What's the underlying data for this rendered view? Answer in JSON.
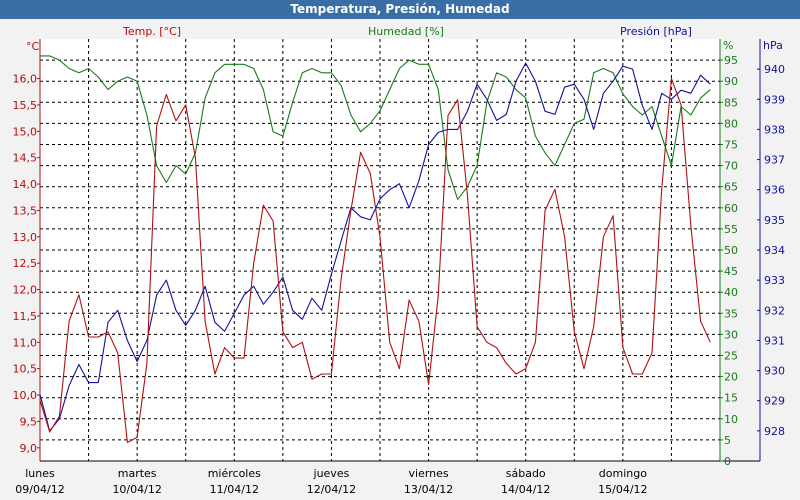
{
  "window_title": "Temperatura, Presión, Humedad",
  "colors": {
    "temperature": "#b01010",
    "humidity": "#1a7a1a",
    "pressure": "#12129a",
    "grid": "#000000",
    "title_bar": "#3a6fa6"
  },
  "chart_data": {
    "type": "line",
    "title": "Temperatura, Presión, Humedad",
    "grid": true,
    "x_dates": [
      "09/04/12",
      "10/04/12",
      "11/04/12",
      "12/04/12",
      "13/04/12",
      "14/04/12",
      "15/04/12"
    ],
    "x_days": [
      "lunes",
      "martes",
      "miércoles",
      "jueves",
      "viernes",
      "sábado",
      "domingo"
    ],
    "axes": {
      "temperature": {
        "label": "Temp. [°C]",
        "unit": "°C",
        "range": [
          8.75,
          16.75
        ],
        "ticks": [
          "9,0",
          "9,5",
          "10,0",
          "10,5",
          "11,0",
          "11,5",
          "12,0",
          "12,5",
          "13,0",
          "13,5",
          "14,0",
          "14,5",
          "15,0",
          "15,5",
          "16,0"
        ],
        "tick_values": [
          9.0,
          9.5,
          10.0,
          10.5,
          11.0,
          11.5,
          12.0,
          12.5,
          13.0,
          13.5,
          14.0,
          14.5,
          15.0,
          15.5,
          16.0
        ]
      },
      "humidity": {
        "label": "Humedad [%]",
        "unit": "%",
        "range": [
          0,
          100
        ],
        "ticks": [
          "0",
          "5",
          "10",
          "15",
          "20",
          "25",
          "30",
          "35",
          "40",
          "45",
          "50",
          "55",
          "60",
          "65",
          "70",
          "75",
          "80",
          "85",
          "90",
          "95"
        ],
        "tick_values": [
          0,
          5,
          10,
          15,
          20,
          25,
          30,
          35,
          40,
          45,
          50,
          55,
          60,
          65,
          70,
          75,
          80,
          85,
          90,
          95
        ]
      },
      "pressure": {
        "label": "Presión [hPa]",
        "unit": "hPa",
        "range": [
          927,
          941
        ],
        "ticks": [
          "928",
          "929",
          "930",
          "931",
          "932",
          "933",
          "934",
          "935",
          "936",
          "937",
          "938",
          "939",
          "940"
        ],
        "tick_values": [
          928,
          929,
          930,
          931,
          932,
          933,
          934,
          935,
          936,
          937,
          938,
          939,
          940
        ]
      }
    },
    "series": [
      {
        "name": "Temp. [°C]",
        "axis": "temperature",
        "x": [
          0,
          0.1,
          0.2,
          0.3,
          0.4,
          0.5,
          0.6,
          0.7,
          0.8,
          0.9,
          1.0,
          1.1,
          1.2,
          1.3,
          1.4,
          1.5,
          1.6,
          1.7,
          1.8,
          1.9,
          2.0,
          2.1,
          2.2,
          2.3,
          2.4,
          2.5,
          2.6,
          2.7,
          2.8,
          2.9,
          3.0,
          3.1,
          3.2,
          3.3,
          3.4,
          3.5,
          3.6,
          3.7,
          3.8,
          3.9,
          4.0,
          4.1,
          4.2,
          4.3,
          4.4,
          4.5,
          4.6,
          4.7,
          4.8,
          4.9,
          5.0,
          5.1,
          5.2,
          5.3,
          5.4,
          5.5,
          5.6,
          5.7,
          5.8,
          5.9,
          6.0,
          6.1,
          6.2,
          6.3,
          6.4,
          6.5,
          6.6,
          6.7,
          6.8,
          6.9
        ],
        "values": [
          9.9,
          9.3,
          9.6,
          11.4,
          11.9,
          11.1,
          11.1,
          11.2,
          10.8,
          9.1,
          9.2,
          10.6,
          15.1,
          15.7,
          15.2,
          15.5,
          14.5,
          11.4,
          10.4,
          10.9,
          10.7,
          10.7,
          12.5,
          13.6,
          13.3,
          11.2,
          10.9,
          11.0,
          10.3,
          10.4,
          10.4,
          12.2,
          13.5,
          14.6,
          14.2,
          13.0,
          11.0,
          10.5,
          11.8,
          11.4,
          10.2,
          11.9,
          15.3,
          15.6,
          13.8,
          11.3,
          11.0,
          10.9,
          10.6,
          10.4,
          10.5,
          11.0,
          13.5,
          13.9,
          13.0,
          11.2,
          10.5,
          11.3,
          13.0,
          13.4,
          10.9,
          10.4,
          10.4,
          10.8,
          13.9,
          16.0,
          15.5,
          13.2,
          11.4,
          11.0
        ]
      },
      {
        "name": "Humedad [%]",
        "axis": "humidity",
        "x": [
          0,
          0.1,
          0.2,
          0.3,
          0.4,
          0.5,
          0.6,
          0.7,
          0.8,
          0.9,
          1.0,
          1.1,
          1.2,
          1.3,
          1.4,
          1.5,
          1.6,
          1.7,
          1.8,
          1.9,
          2.0,
          2.1,
          2.2,
          2.3,
          2.4,
          2.5,
          2.6,
          2.7,
          2.8,
          2.9,
          3.0,
          3.1,
          3.2,
          3.3,
          3.4,
          3.5,
          3.6,
          3.7,
          3.8,
          3.9,
          4.0,
          4.1,
          4.2,
          4.3,
          4.4,
          4.5,
          4.6,
          4.7,
          4.8,
          4.9,
          5.0,
          5.1,
          5.2,
          5.3,
          5.4,
          5.5,
          5.6,
          5.7,
          5.8,
          5.9,
          6.0,
          6.1,
          6.2,
          6.3,
          6.4,
          6.5,
          6.6,
          6.7,
          6.8,
          6.9
        ],
        "values": [
          96,
          96,
          95,
          93,
          92,
          93,
          91,
          88,
          90,
          91,
          90,
          82,
          70,
          66,
          70,
          68,
          73,
          86,
          92,
          94,
          94,
          94,
          93,
          88,
          78,
          77,
          85,
          92,
          93,
          92,
          92,
          89,
          82,
          78,
          80,
          83,
          88,
          93,
          95,
          94,
          94,
          88,
          69,
          62,
          65,
          70,
          85,
          92,
          91,
          88,
          86,
          77,
          73,
          70,
          75,
          80,
          81,
          92,
          93,
          92,
          87,
          84,
          82,
          84,
          77,
          70,
          84,
          82,
          86,
          88
        ]
      },
      {
        "name": "Presión [hPa]",
        "axis": "pressure",
        "x": [
          0,
          0.1,
          0.2,
          0.3,
          0.4,
          0.5,
          0.6,
          0.7,
          0.8,
          0.9,
          1.0,
          1.1,
          1.2,
          1.3,
          1.4,
          1.5,
          1.6,
          1.7,
          1.8,
          1.9,
          2.0,
          2.1,
          2.2,
          2.3,
          2.4,
          2.5,
          2.6,
          2.7,
          2.8,
          2.9,
          3.0,
          3.1,
          3.2,
          3.3,
          3.4,
          3.5,
          3.6,
          3.7,
          3.8,
          3.9,
          4.0,
          4.1,
          4.2,
          4.3,
          4.4,
          4.5,
          4.6,
          4.7,
          4.8,
          4.9,
          5.0,
          5.1,
          5.2,
          5.3,
          5.4,
          5.5,
          5.6,
          5.7,
          5.8,
          5.9,
          6.0,
          6.1,
          6.2,
          6.3,
          6.4,
          6.5,
          6.6,
          6.7,
          6.8,
          6.9
        ],
        "values": [
          929.2,
          928.0,
          928.4,
          929.5,
          930.2,
          929.6,
          929.6,
          931.6,
          932.0,
          931.0,
          930.3,
          931.0,
          932.5,
          933.0,
          932.0,
          931.5,
          932.0,
          932.8,
          931.6,
          931.3,
          931.9,
          932.5,
          932.8,
          932.2,
          932.6,
          933.1,
          932.0,
          931.7,
          932.4,
          932.0,
          933.2,
          934.3,
          935.4,
          935.1,
          935.0,
          935.7,
          936.0,
          936.2,
          935.4,
          936.3,
          937.5,
          937.9,
          938.0,
          938.0,
          938.6,
          939.5,
          939.0,
          938.3,
          938.5,
          939.6,
          940.2,
          939.6,
          938.6,
          938.5,
          939.4,
          939.5,
          939.0,
          938.0,
          939.2,
          939.6,
          940.1,
          940.0,
          938.8,
          938.0,
          939.2,
          939.0,
          939.3,
          939.2,
          939.8,
          939.5
        ]
      }
    ]
  }
}
